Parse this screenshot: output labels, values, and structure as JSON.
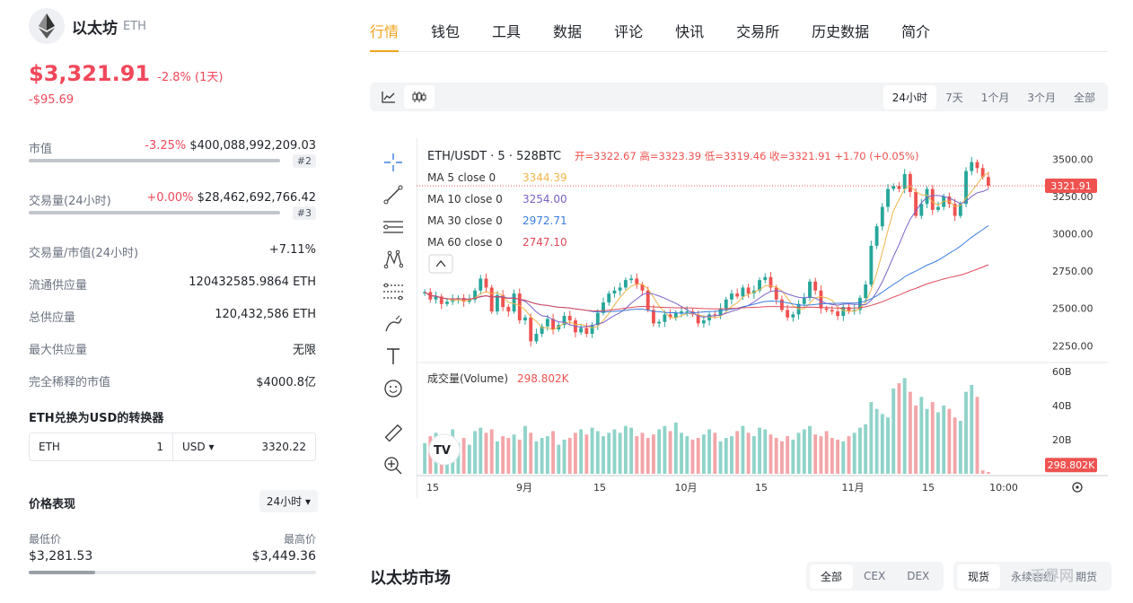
{
  "coin": {
    "name": "以太坊",
    "symbol": "ETH",
    "price": "$3,321.91",
    "change": "-2.8% (1天)",
    "delta": "-$95.69"
  },
  "stats": {
    "market_cap": {
      "label": "市值",
      "change": "-3.25%",
      "value": "$400,088,992,209.03",
      "rank": "#2"
    },
    "volume": {
      "label": "交易量(24小时)",
      "change": "+0.00%",
      "value": "$28,462,692,766.42",
      "rank": "#3"
    },
    "vol_mcap": {
      "label": "交易量/市值(24小时)",
      "value": "+7.11%"
    },
    "circulating": {
      "label": "流通供应量",
      "value": "120432585.9864 ETH"
    },
    "total": {
      "label": "总供应量",
      "value": "120,432,586 ETH"
    },
    "max": {
      "label": "最大供应量",
      "value": "无限"
    },
    "fdv": {
      "label": "完全稀释的市值",
      "value": "$4000.8亿"
    }
  },
  "converter": {
    "title": "ETH兑换为USD的转换器",
    "from": "ETH",
    "amount": "1",
    "to": "USD ▾",
    "result": "3320.22"
  },
  "performance": {
    "title": "价格表现",
    "period": "24小时 ▾",
    "low_label": "最低价",
    "high_label": "最高价",
    "low": "$3,281.53",
    "high": "$3,449.36",
    "position": 0.23
  },
  "tabs": [
    "行情",
    "钱包",
    "工具",
    "数据",
    "评论",
    "快讯",
    "交易所",
    "历史数据",
    "简介"
  ],
  "ranges": [
    "24小时",
    "7天",
    "1个月",
    "3个月",
    "全部"
  ],
  "market": {
    "title": "以太坊市场",
    "filters": [
      "全部",
      "CEX",
      "DEX"
    ],
    "types": [
      "现货",
      "永续合约",
      "期货"
    ]
  },
  "watermark": "币界网",
  "chart_data": {
    "type": "candlestick",
    "pair": "ETH/USDT · 5 · 528BTC",
    "ohlc": "开=3322.67  高=3323.39  低=3319.46  收=3321.91  +1.70 (+0.05%)",
    "ma": [
      {
        "label": "MA 5 close 0",
        "value": "3344.39",
        "color": "#f0b44a"
      },
      {
        "label": "MA 10 close 0",
        "value": "3254.00",
        "color": "#7b61c9"
      },
      {
        "label": "MA 30 close 0",
        "value": "2972.71",
        "color": "#3b7de0"
      },
      {
        "label": "MA 60 close 0",
        "value": "2747.10",
        "color": "#e0485a"
      }
    ],
    "volume_label": "成交量(Volume)",
    "volume_value": "298.802K",
    "last_price": "3321.91",
    "y_ticks": [
      "3500.00",
      "3250.00",
      "3000.00",
      "2750.00",
      "2500.00",
      "2250.00"
    ],
    "y_range": [
      2150,
      3580
    ],
    "vol_ticks": [
      "60B",
      "40B",
      "20B"
    ],
    "vol_range": [
      0,
      62
    ],
    "x_ticks": [
      "15",
      "9月",
      "15",
      "10月",
      "15",
      "11月",
      "15",
      "10:00"
    ],
    "closes": [
      2610,
      2560,
      2580,
      2530,
      2545,
      2560,
      2570,
      2545,
      2560,
      2620,
      2700,
      2640,
      2480,
      2590,
      2510,
      2480,
      2600,
      2420,
      2440,
      2280,
      2330,
      2380,
      2430,
      2360,
      2390,
      2450,
      2420,
      2340,
      2370,
      2330,
      2390,
      2470,
      2540,
      2600,
      2620,
      2640,
      2690,
      2700,
      2660,
      2620,
      2490,
      2400,
      2410,
      2460,
      2440,
      2470,
      2480,
      2480,
      2460,
      2400,
      2420,
      2460,
      2450,
      2500,
      2560,
      2600,
      2580,
      2640,
      2600,
      2620,
      2690,
      2710,
      2640,
      2560,
      2490,
      2440,
      2460,
      2530,
      2570,
      2680,
      2620,
      2500,
      2490,
      2480,
      2450,
      2510,
      2480,
      2490,
      2570,
      2660,
      2920,
      3050,
      3180,
      3300,
      3320,
      3300,
      3400,
      3280,
      3120,
      3200,
      3300,
      3160,
      3180,
      3250,
      3200,
      3120,
      3200,
      3420,
      3480,
      3440,
      3380,
      3321.91
    ],
    "volumes": [
      18,
      22,
      24,
      19,
      23,
      26,
      18,
      21,
      17,
      25,
      27,
      24,
      26,
      19,
      22,
      21,
      23,
      20,
      28,
      24,
      19,
      21,
      22,
      25,
      17,
      20,
      21,
      24,
      26,
      23,
      27,
      25,
      22,
      24,
      26,
      24,
      28,
      27,
      22,
      24,
      21,
      23,
      26,
      28,
      25,
      30,
      24,
      22,
      20,
      21,
      23,
      26,
      24,
      19,
      21,
      22,
      25,
      28,
      24,
      22,
      27,
      26,
      23,
      21,
      19,
      22,
      20,
      24,
      26,
      28,
      23,
      22,
      25,
      21,
      20,
      19,
      22,
      24,
      27,
      29,
      42,
      38,
      35,
      33,
      50,
      53,
      56,
      48,
      40,
      45,
      38,
      42,
      36,
      40,
      38,
      33,
      31,
      48,
      52,
      45,
      2,
      1
    ]
  }
}
